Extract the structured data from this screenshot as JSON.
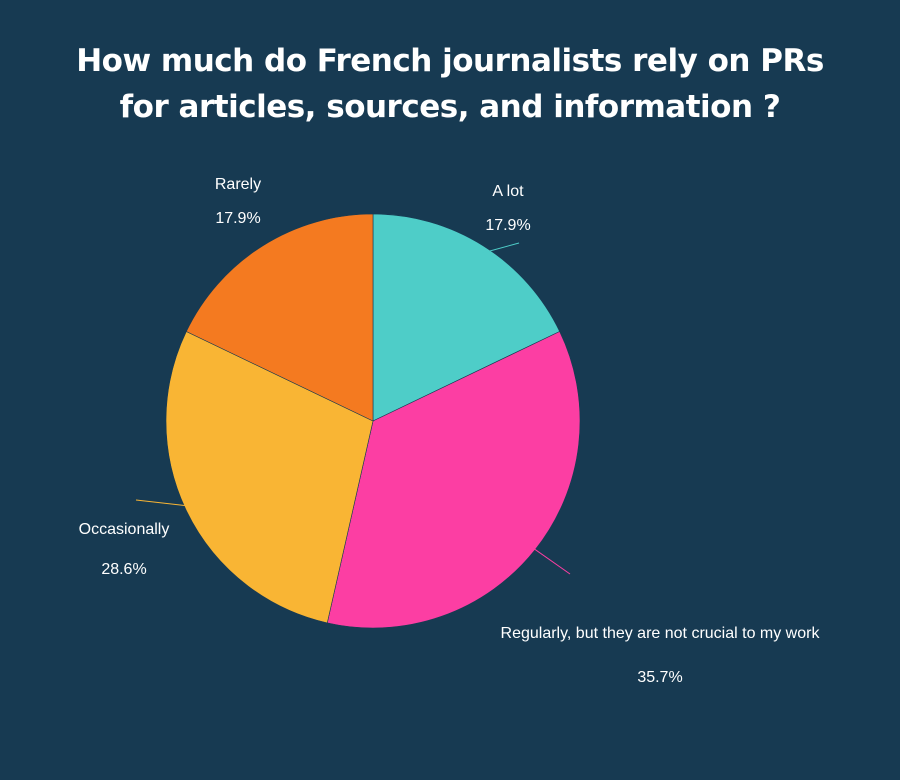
{
  "chart_data": {
    "type": "pie",
    "title_lines": [
      "How much do French journalists rely on PRs",
      "for articles, sources, and information ?"
    ],
    "slices": [
      {
        "label": "A lot",
        "value": 17.9,
        "value_label": "17.9%",
        "color": "#4ecdc8"
      },
      {
        "label": "Regularly, but they are not crucial to my work",
        "value": 35.7,
        "value_label": "35.7%",
        "color": "#fc3ea3"
      },
      {
        "label": "Occasionally",
        "value": 28.6,
        "value_label": "28.6%",
        "color": "#f9b534"
      },
      {
        "label": "Rarely",
        "value": 17.9,
        "value_label": "17.9%",
        "color": "#f47a20"
      }
    ],
    "start_angle": "top (12 o'clock)",
    "direction": "clockwise",
    "legend": "none",
    "background": "#173a52"
  }
}
